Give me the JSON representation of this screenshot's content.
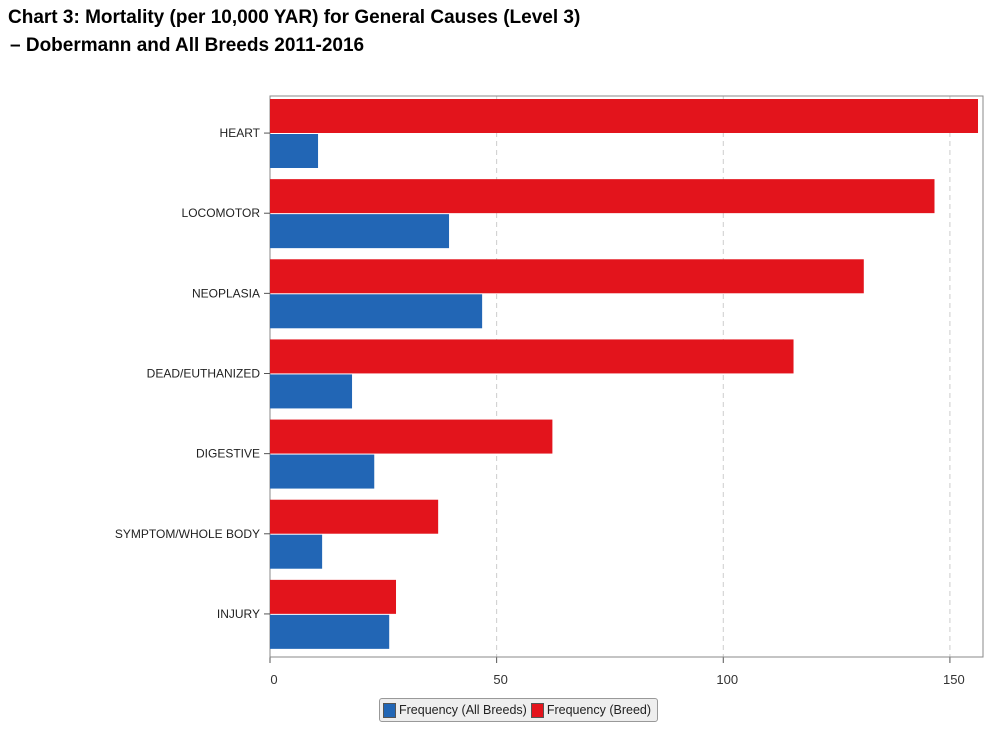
{
  "chart_data": {
    "type": "bar",
    "orientation": "horizontal",
    "title_line1": "Chart 3: Mortality (per 10,000 YAR) for General Causes (Level 3)",
    "title_line2": "–  Dobermann and All Breeds 2011-2016",
    "categories": [
      "HEART",
      "LOCOMOTOR",
      "NEOPLASIA",
      "DEAD/EUTHANIZED",
      "DIGESTIVE",
      "SYMPTOM/WHOLE BODY",
      "INJURY"
    ],
    "series": [
      {
        "name": "Frequency (Breed)",
        "color": "#e3141c",
        "values": [
          156.2,
          146.6,
          131.0,
          115.5,
          62.3,
          37.1,
          27.8
        ]
      },
      {
        "name": "Frequency (All Breeds)",
        "color": "#2266b5",
        "values": [
          10.6,
          39.5,
          46.8,
          18.1,
          23.0,
          11.5,
          26.3
        ]
      }
    ],
    "xlabel": "",
    "ylabel": "",
    "xlim": [
      0,
      157.3
    ],
    "xticks": [
      "0",
      "50",
      "100",
      "150"
    ],
    "xtick_values": [
      0,
      50,
      100,
      150
    ],
    "grid": "vertical dashed",
    "legend": {
      "position": "bottom",
      "items": [
        "Frequency (All Breeds)",
        "Frequency (Breed)"
      ]
    }
  }
}
